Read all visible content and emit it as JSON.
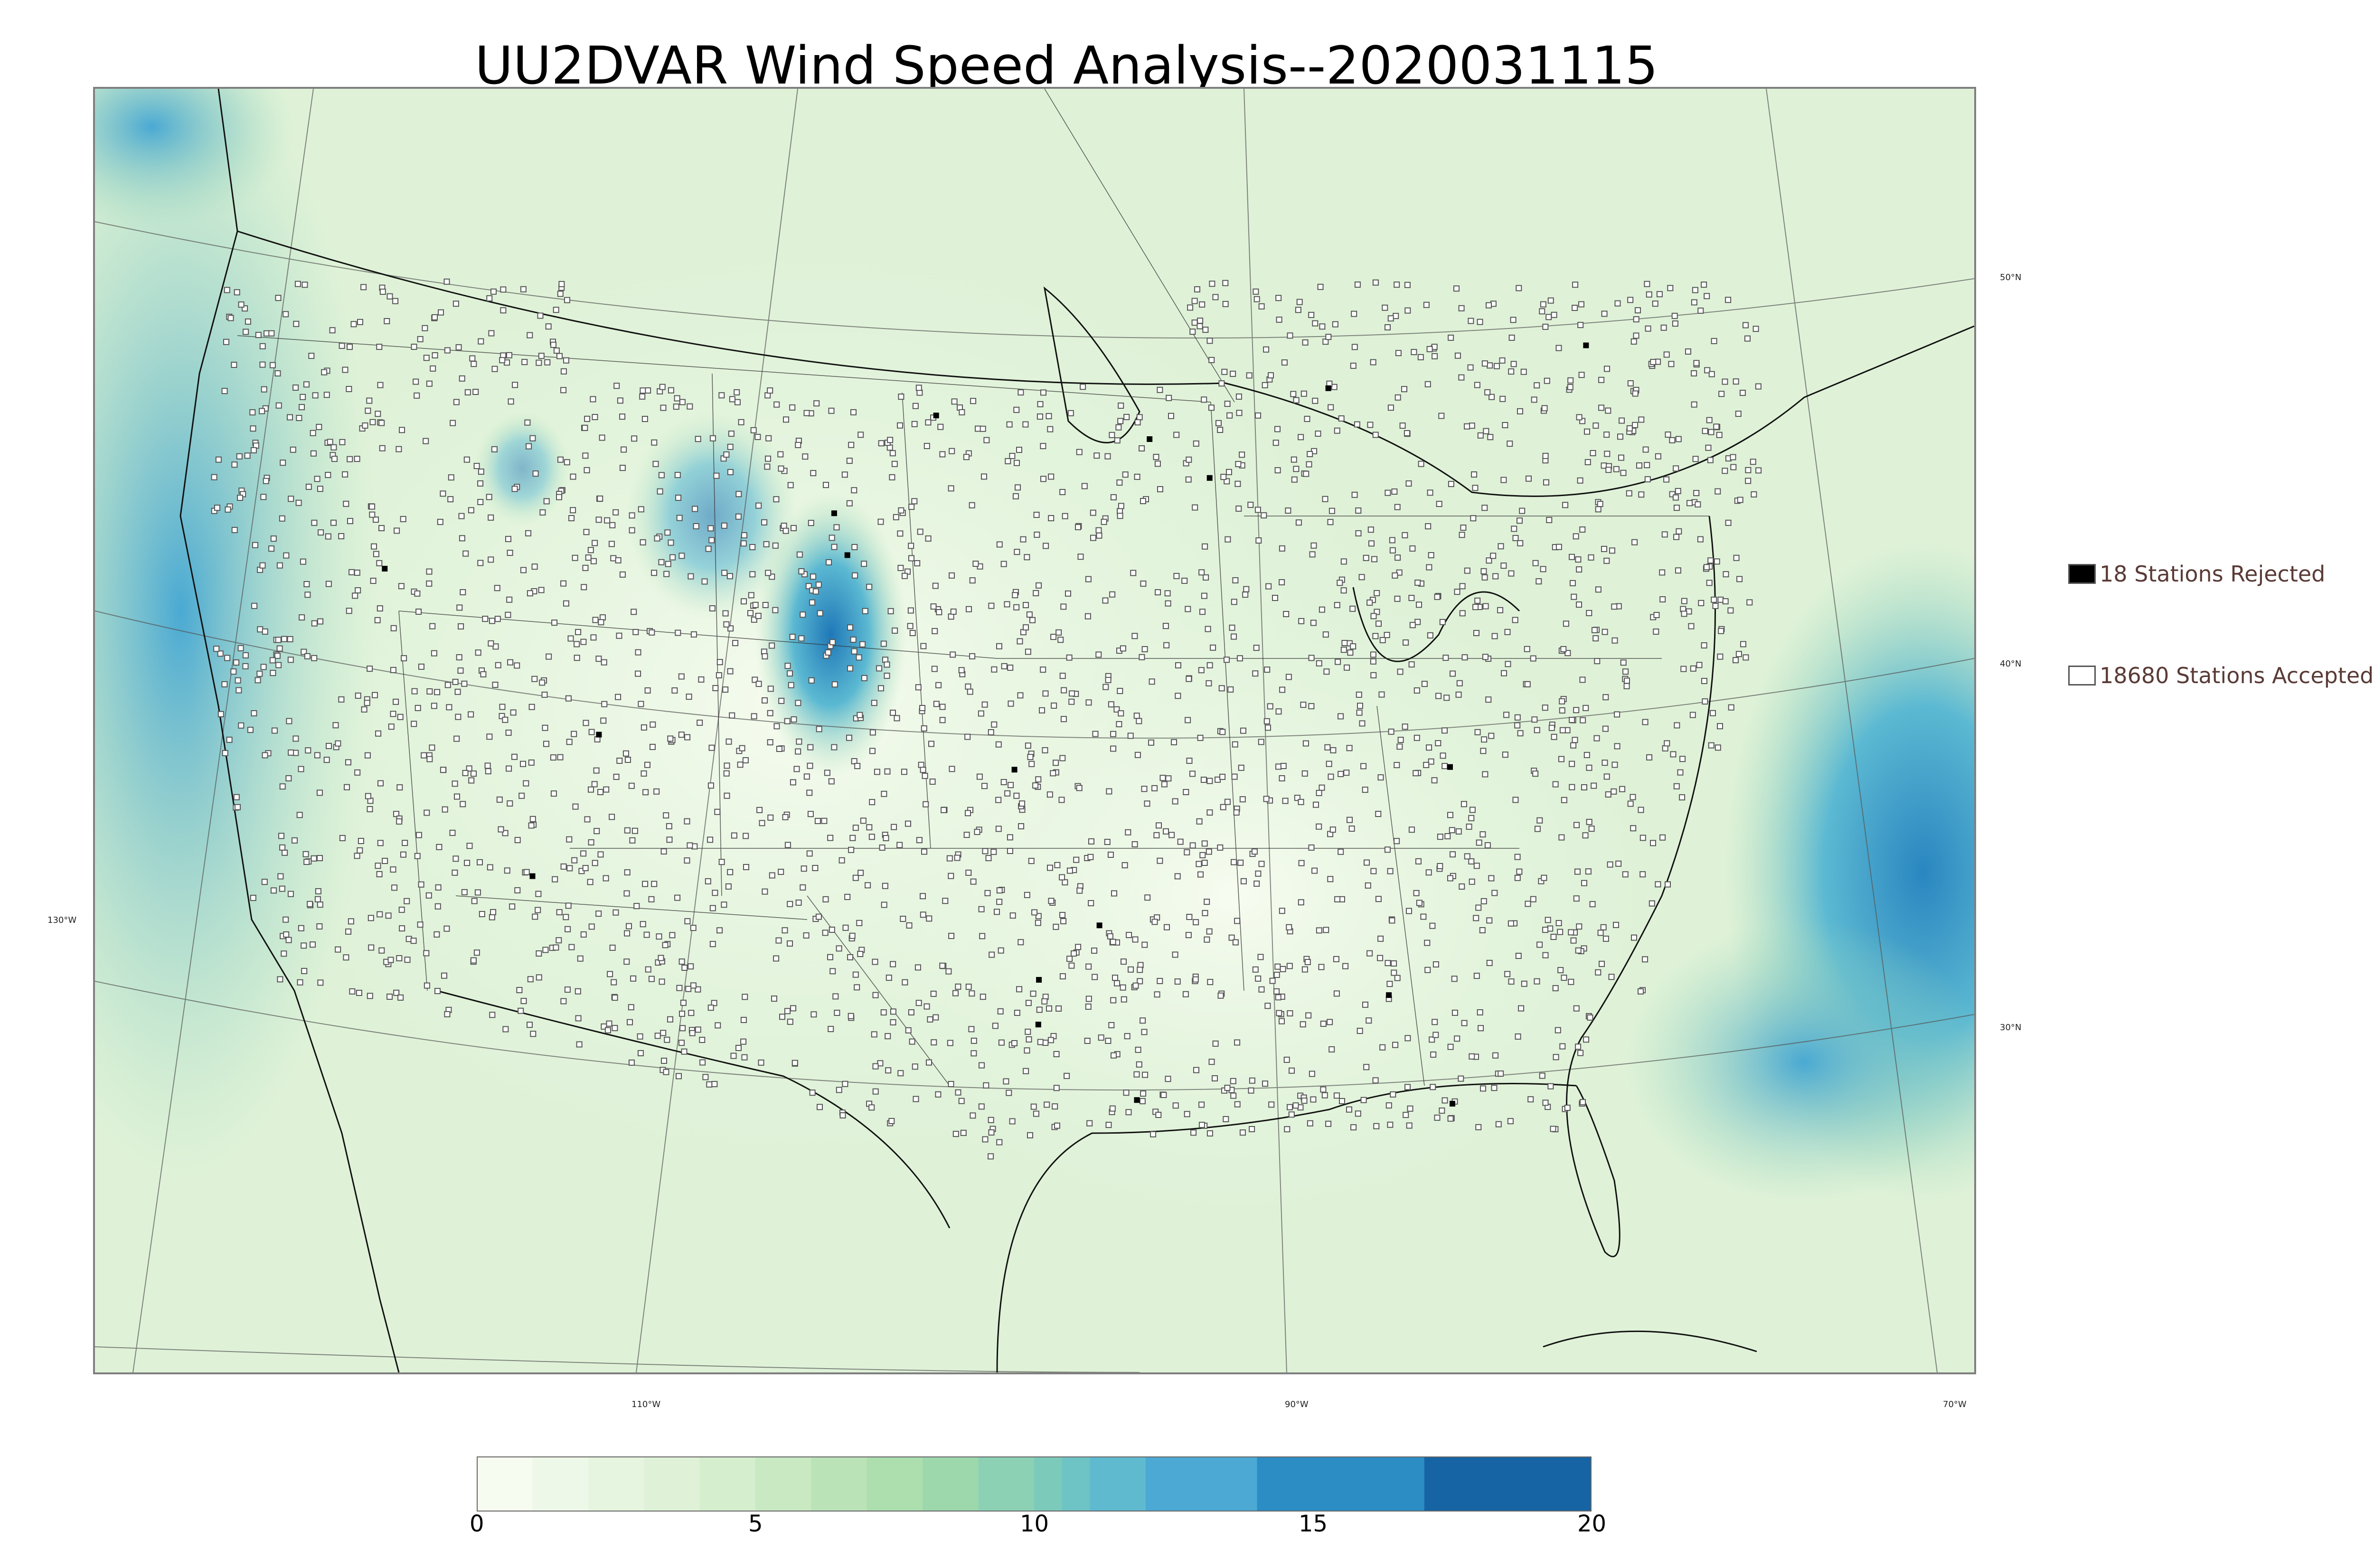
{
  "title": "UU2DVAR Wind Speed Analysis--2020031115",
  "map": {
    "lat_labels": [
      "50°N",
      "40°N",
      "30°N"
    ],
    "lon_labels": [
      "130°W",
      "110°W",
      "90°W",
      "70°W"
    ]
  },
  "legend": {
    "rejected": {
      "label": "18 Stations Rejected",
      "color": "#000000"
    },
    "accepted": {
      "label": "18680 Stations Accepted",
      "color": "#ffffff"
    }
  },
  "colorbar": {
    "ticks": [
      "0",
      "5",
      "10",
      "15",
      "20"
    ],
    "range": [
      0,
      20
    ],
    "bins": [
      0,
      1,
      2,
      3,
      4,
      5,
      6,
      7,
      8,
      9,
      10,
      10.5,
      11,
      12,
      14,
      17,
      20
    ],
    "colors": [
      "#f7fcf0",
      "#eef8e8",
      "#e6f5e0",
      "#dff2d8",
      "#d4eece",
      "#c8e9c2",
      "#bae3b8",
      "#acdeae",
      "#9dd8ad",
      "#8dd1b4",
      "#7ccaba",
      "#6ec3c5",
      "#5fbad0",
      "#4ba9d4",
      "#2b8dc4",
      "#1664a4"
    ]
  },
  "chart_data": {
    "type": "heatmap",
    "title": "UU2DVAR Wind Speed Analysis--2020031115",
    "colorbar_range": [
      0,
      20
    ],
    "colorbar_ticks": [
      0,
      5,
      10,
      15,
      20
    ],
    "stations_rejected": 18,
    "stations_accepted": 18680
  }
}
